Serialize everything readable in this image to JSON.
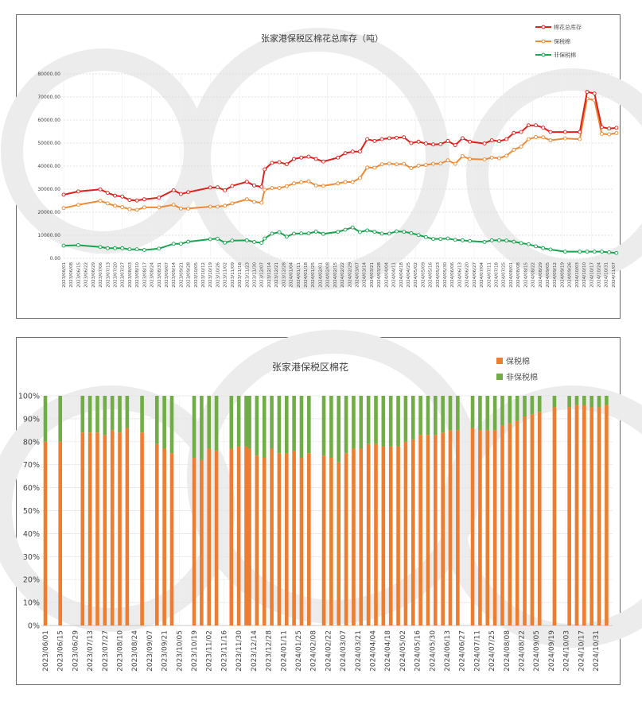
{
  "chart_data": [
    {
      "type": "line",
      "title": "张家港保税区棉花总库存（吨）",
      "legend_position": "top-right",
      "ylim": [
        0,
        80000
      ],
      "y_tick_labels": [
        "0.00",
        "10000.00",
        "20000.00",
        "30000.00",
        "40000.00",
        "50000.00",
        "60000.00",
        "70000.00",
        "80000.00"
      ],
      "grid": "horizontal dashed",
      "x_tick_labels": [
        "2023/06/01",
        "2023/06/08",
        "2023/06/15",
        "2023/06/22",
        "2023/06/29",
        "2023/07/06",
        "2023/07/13",
        "2023/07/20",
        "2023/07/27",
        "2023/08/03",
        "2023/08/10",
        "2023/08/17",
        "2023/08/24",
        "2023/08/31",
        "2023/09/07",
        "2023/09/14",
        "2023/09/21",
        "2023/09/28",
        "2023/10/05",
        "2023/10/12",
        "2023/10/19",
        "2023/10/26",
        "2023/11/02",
        "2023/11/09",
        "2023/11/16",
        "2023/11/23",
        "2023/11/30",
        "2023/12/07",
        "2023/12/14",
        "2023/12/21",
        "2023/12/28",
        "2024/01/04",
        "2024/01/11",
        "2024/01/18",
        "2024/01/25",
        "2024/02/01",
        "2024/02/08",
        "2024/02/15",
        "2024/02/22",
        "2024/02/29",
        "2024/03/07",
        "2024/03/14",
        "2024/03/21",
        "2024/03/28",
        "2024/04/04",
        "2024/04/11",
        "2024/04/18",
        "2024/04/25",
        "2024/05/02",
        "2024/05/09",
        "2024/05/16",
        "2024/05/23",
        "2024/05/30",
        "2024/06/06",
        "2024/06/13",
        "2024/06/20",
        "2024/06/27",
        "2024/07/04",
        "2024/07/11",
        "2024/07/18",
        "2024/07/25",
        "2024/08/01",
        "2024/08/08",
        "2024/08/15",
        "2024/08/22",
        "2024/08/29",
        "2024/09/05",
        "2024/09/12",
        "2024/09/19",
        "2024/09/26",
        "2024/10/03",
        "2024/10/10",
        "2024/10/17",
        "2024/10/24",
        "2024/10/31",
        "2024/11/07"
      ],
      "x": [
        "2023/06/01",
        "2023/06/15",
        "2023/07/06",
        "2023/07/13",
        "2023/07/20",
        "2023/07/27",
        "2023/08/03",
        "2023/08/10",
        "2023/08/17",
        "2023/08/31",
        "2023/09/14",
        "2023/09/21",
        "2023/09/28",
        "2023/10/19",
        "2023/10/26",
        "2023/11/02",
        "2023/11/09",
        "2023/11/23",
        "2023/11/30",
        "2023/12/07",
        "2023/12/10",
        "2023/12/17",
        "2023/12/24",
        "2023/12/31",
        "2024/01/07",
        "2024/01/14",
        "2024/01/21",
        "2024/01/28",
        "2024/02/04",
        "2024/02/18",
        "2024/02/25",
        "2024/03/03",
        "2024/03/10",
        "2024/03/17",
        "2024/03/24",
        "2024/03/31",
        "2024/04/07",
        "2024/04/14",
        "2024/04/21",
        "2024/04/28",
        "2024/05/05",
        "2024/05/12",
        "2024/05/19",
        "2024/05/26",
        "2024/06/02",
        "2024/06/09",
        "2024/06/16",
        "2024/06/23",
        "2024/07/07",
        "2024/07/14",
        "2024/07/21",
        "2024/07/28",
        "2024/08/04",
        "2024/08/11",
        "2024/08/18",
        "2024/08/25",
        "2024/09/01",
        "2024/09/08",
        "2024/09/22",
        "2024/10/06",
        "2024/10/13",
        "2024/10/20",
        "2024/10/27",
        "2024/11/03",
        "2024/11/10"
      ],
      "series": [
        {
          "name": "棉花总库存",
          "color": "#e0201b",
          "values": [
            27600,
            29000,
            29900,
            28400,
            27200,
            26800,
            25300,
            25100,
            25600,
            26300,
            29500,
            27900,
            28700,
            30700,
            30800,
            29500,
            31400,
            33200,
            31600,
            31000,
            38600,
            41400,
            41700,
            40800,
            43100,
            43700,
            44100,
            43100,
            42000,
            43700,
            45600,
            46300,
            46300,
            51700,
            50900,
            51700,
            52100,
            52300,
            52500,
            50000,
            50600,
            49800,
            49400,
            49500,
            50900,
            49100,
            52100,
            50600,
            49800,
            51200,
            50800,
            51700,
            54400,
            54800,
            57700,
            57700,
            56700,
            54800,
            54800,
            54800,
            72200,
            71500,
            56900,
            56300,
            56600
          ]
        },
        {
          "name": "保税棉",
          "color": "#ee8a35",
          "values": [
            21800,
            23200,
            24900,
            23800,
            22800,
            22200,
            21300,
            21000,
            22100,
            22100,
            23200,
            21600,
            21600,
            22400,
            22400,
            22800,
            23800,
            25600,
            24500,
            24100,
            29700,
            30500,
            30500,
            31300,
            32500,
            33000,
            33400,
            31600,
            31400,
            32500,
            33100,
            33100,
            34800,
            39400,
            39300,
            40800,
            41100,
            40800,
            41000,
            39100,
            40200,
            40500,
            41000,
            41100,
            42500,
            41000,
            44300,
            43100,
            42900,
            43700,
            43400,
            44500,
            47100,
            48500,
            51700,
            52600,
            52500,
            51200,
            52000,
            51700,
            69300,
            68600,
            54000,
            53800,
            54300
          ]
        },
        {
          "name": "非保税棉",
          "color": "#1aa450",
          "values": [
            5500,
            5700,
            4900,
            4400,
            4400,
            4400,
            3900,
            3900,
            3600,
            4200,
            6300,
            6300,
            7200,
            8300,
            8500,
            6800,
            7700,
            7800,
            7100,
            6700,
            8600,
            10700,
            11300,
            9400,
            10700,
            10800,
            10800,
            11600,
            10600,
            11500,
            12400,
            13400,
            11400,
            12100,
            11500,
            10700,
            10700,
            11700,
            11500,
            10900,
            10100,
            9200,
            8400,
            8400,
            8600,
            8000,
            7800,
            7500,
            7100,
            7800,
            7800,
            7700,
            7200,
            6600,
            6100,
            5200,
            4400,
            3800,
            2900,
            2900,
            2900,
            2900,
            2900,
            2600,
            2300
          ]
        }
      ]
    },
    {
      "type": "bar",
      "stacked": "percent",
      "title": "张家港保税区棉花",
      "legend_position": "top-right",
      "ylim": [
        0,
        100
      ],
      "y_tick_labels": [
        "0%",
        "10%",
        "20%",
        "30%",
        "40%",
        "50%",
        "60%",
        "70%",
        "80%",
        "90%",
        "100%"
      ],
      "x_tick_labels": [
        "2023/06/01",
        "2023/06/15",
        "2023/06/29",
        "2023/07/13",
        "2023/07/27",
        "2023/08/10",
        "2023/08/24",
        "2023/09/07",
        "2023/09/21",
        "2023/10/05",
        "2023/10/19",
        "2023/11/02",
        "2023/11/16",
        "2023/11/30",
        "2023/12/14",
        "2023/12/28",
        "2024/01/11",
        "2024/01/25",
        "2024/02/08",
        "2024/02/22",
        "2024/03/07",
        "2024/03/21",
        "2024/04/04",
        "2024/04/18",
        "2024/05/02",
        "2024/05/16",
        "2024/05/30",
        "2024/06/13",
        "2024/06/27",
        "2024/07/11",
        "2024/07/25",
        "2024/08/08",
        "2024/08/22",
        "2024/09/05",
        "2024/09/19",
        "2024/10/03",
        "2024/10/17",
        "2024/10/31"
      ],
      "series": [
        {
          "name": "保税棉",
          "color": "#ed7d31",
          "values": [
            80,
            80,
            84,
            84,
            84,
            83,
            85,
            84,
            86,
            84,
            79,
            77,
            75,
            73,
            72,
            77,
            76,
            77,
            78,
            78,
            77,
            74,
            73,
            77,
            75,
            75,
            76,
            73,
            75,
            74,
            73,
            71,
            75,
            77,
            77,
            79,
            79,
            78,
            78,
            78,
            80,
            81,
            83,
            83,
            83,
            84,
            85,
            85,
            86,
            85,
            85,
            85,
            87,
            88,
            89,
            91,
            92,
            93,
            95,
            95,
            96,
            96,
            95,
            95,
            96
          ]
        },
        {
          "name": "非保税棉",
          "color": "#70ad47",
          "values": [
            20,
            20,
            16,
            16,
            16,
            17,
            15,
            16,
            14,
            16,
            21,
            23,
            25,
            27,
            28,
            23,
            24,
            23,
            22,
            22,
            23,
            26,
            27,
            23,
            25,
            25,
            24,
            27,
            25,
            26,
            27,
            29,
            25,
            23,
            23,
            21,
            21,
            22,
            22,
            22,
            20,
            19,
            17,
            17,
            17,
            16,
            15,
            15,
            14,
            15,
            15,
            15,
            13,
            12,
            11,
            9,
            8,
            7,
            5,
            5,
            4,
            4,
            5,
            5,
            4
          ]
        }
      ]
    }
  ]
}
